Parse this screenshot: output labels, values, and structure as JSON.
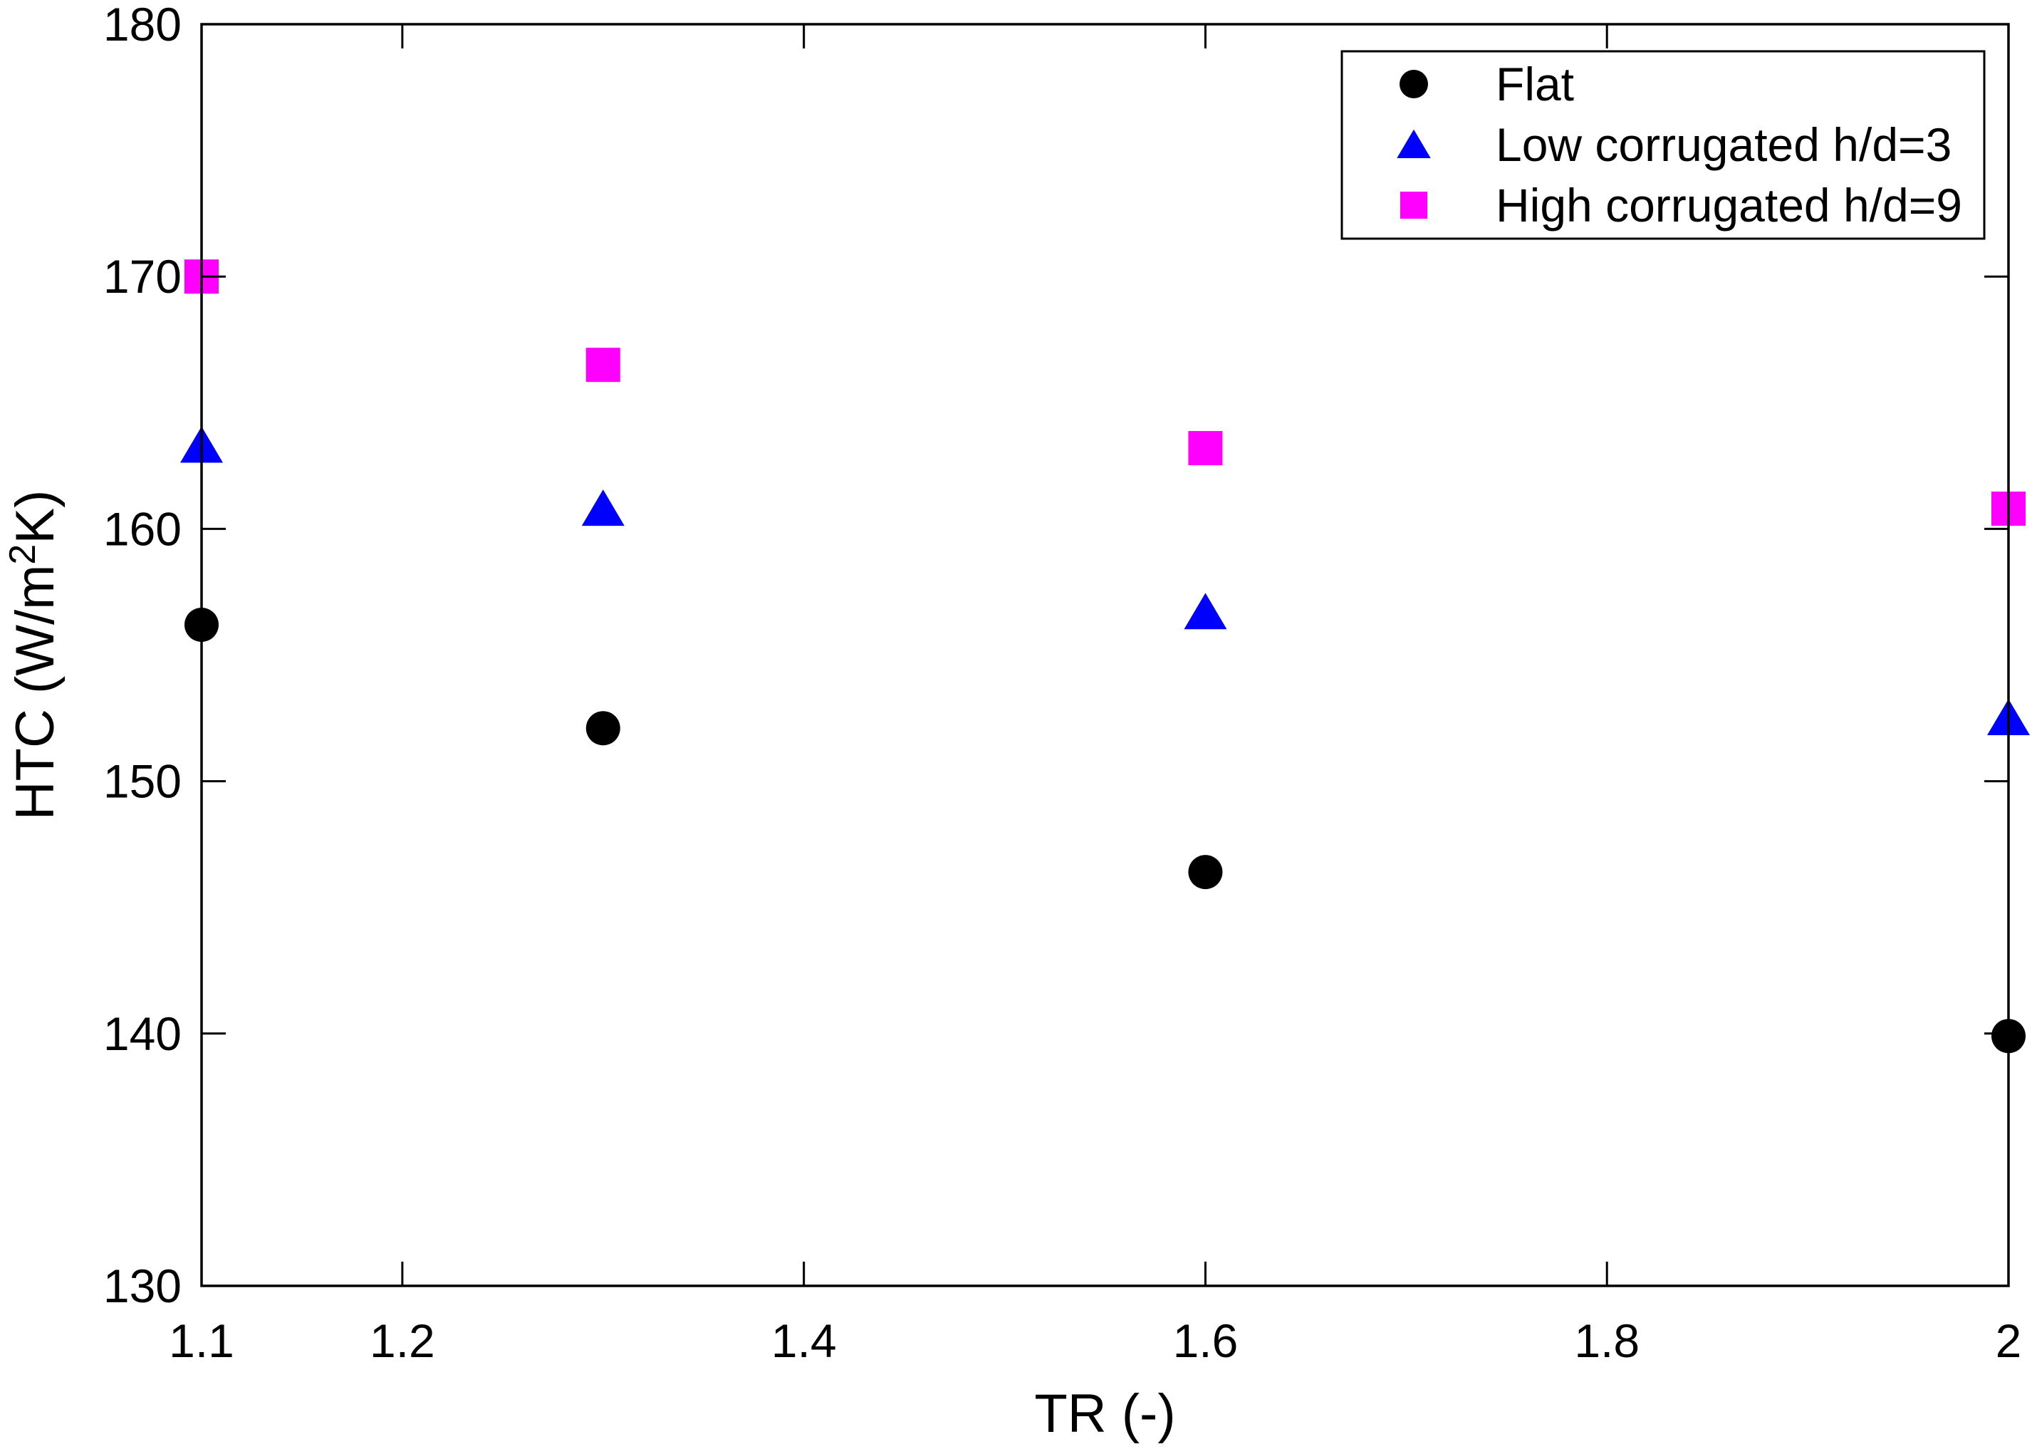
{
  "figure": {
    "background": "#ffffff",
    "axis_color": "#000000"
  },
  "chart_data": {
    "type": "scatter",
    "title": "",
    "xlabel": "TR (-)",
    "ylabel": "HTC (W/m²K)",
    "xlim": [
      1.1,
      2
    ],
    "ylim": [
      130,
      180
    ],
    "xticks": [
      1.1,
      1.2,
      1.4,
      1.6,
      1.8,
      2
    ],
    "xtick_labels": [
      "1.1",
      "1.2",
      "1.4",
      "1.6",
      "1.8",
      "2"
    ],
    "yticks": [
      130,
      140,
      150,
      160,
      170,
      180
    ],
    "ytick_labels": [
      "130",
      "140",
      "150",
      "160",
      "170",
      "180"
    ],
    "grid": false,
    "box": true,
    "legend_position": "top-right",
    "x": [
      1.1,
      1.3,
      1.6,
      2.0
    ],
    "series": [
      {
        "name": "High corrugated h/d=9",
        "marker": "square",
        "color": "#ff00ff",
        "values": [
          170.0,
          166.5,
          163.2,
          160.8
        ]
      },
      {
        "name": "Low corrugated h/d=3",
        "marker": "triangle",
        "color": "#0000ff",
        "values": [
          163.3,
          160.8,
          156.7,
          152.5
        ]
      },
      {
        "name": "Flat",
        "marker": "circle",
        "color": "#000000",
        "values": [
          156.2,
          152.1,
          146.4,
          139.9
        ]
      }
    ],
    "legend_order": [
      "Flat",
      "Low corrugated h/d=3",
      "High corrugated h/d=9"
    ]
  }
}
